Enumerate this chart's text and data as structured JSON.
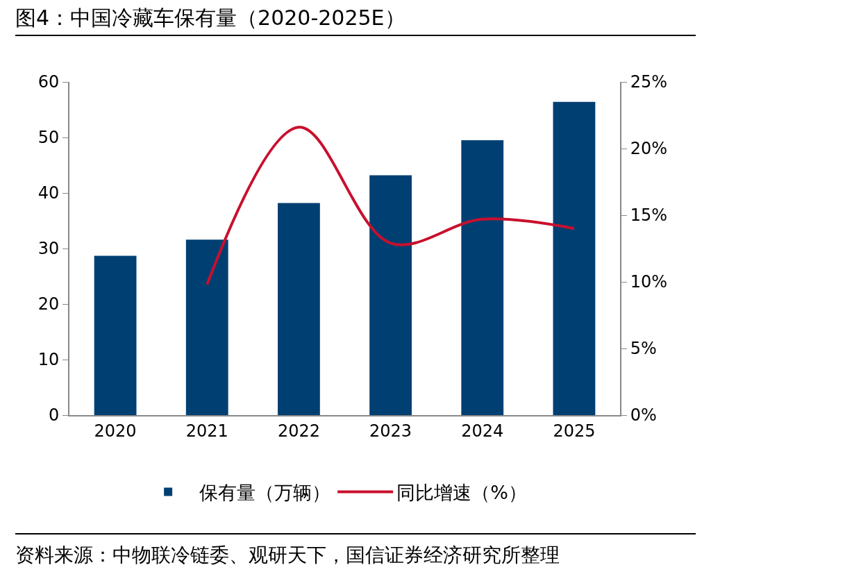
{
  "chart_data": {
    "type": "bar",
    "title": "图4：中国冷藏车保有量（2020-2025E）",
    "categories": [
      "2020",
      "2021",
      "2022",
      "2023",
      "2024",
      "2025"
    ],
    "series": [
      {
        "name": "保有量（万辆）",
        "color": "#003f72",
        "values": [
          28.7,
          31.6,
          38.2,
          43.2,
          49.5,
          56.4
        ]
      },
      {
        "name": "同比增速（%）",
        "type": "line",
        "axis": "y2",
        "color": "#c8102e",
        "values": [
          null,
          9.8,
          21.6,
          12.9,
          14.7,
          14.0
        ]
      }
    ],
    "ylim": [
      0,
      60
    ],
    "yticks": [
      0,
      10,
      20,
      30,
      40,
      50,
      60
    ],
    "y2lim": [
      0,
      25
    ],
    "y2ticks": [
      {
        "value": 0,
        "label": "0%"
      },
      {
        "value": 5,
        "label": "5%"
      },
      {
        "value": 10,
        "label": "10%"
      },
      {
        "value": 15,
        "label": "15%"
      },
      {
        "value": 20,
        "label": "20%"
      },
      {
        "value": 25,
        "label": "25%"
      }
    ],
    "legend": "bottom",
    "annotations": [
      "资料来源：中物联冷链委、观研天下，国信证券经济研究所整理"
    ]
  }
}
